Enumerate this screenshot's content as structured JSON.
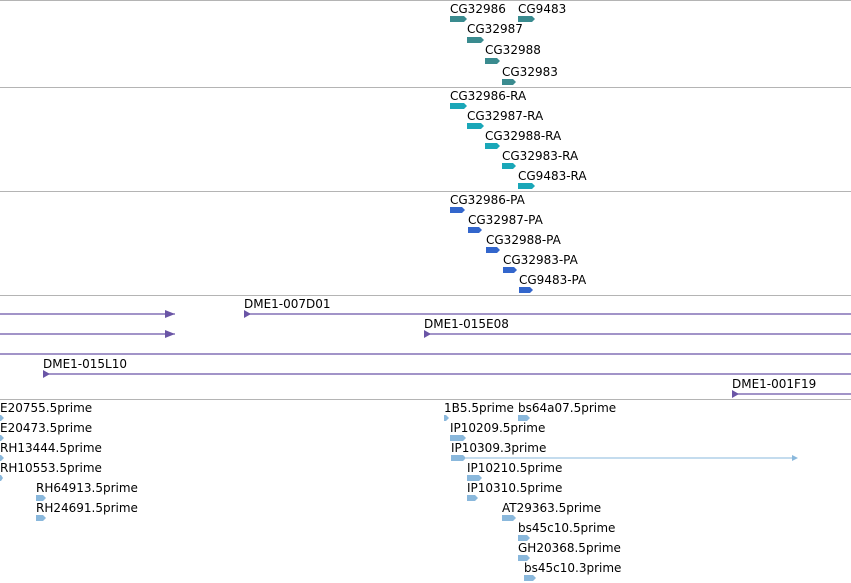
{
  "colors": {
    "gene": "#3a8b8f",
    "transcript": "#1aa7b8",
    "protein": "#3366cc",
    "clone": "#6a55a6",
    "est": "#8ab8dc",
    "divider": "#b4b4b4"
  },
  "tracks": {
    "genes": {
      "features": [
        {
          "label": "CG32986"
        },
        {
          "label": "CG9483"
        },
        {
          "label": "CG32987"
        },
        {
          "label": "CG32988"
        },
        {
          "label": "CG32983"
        }
      ]
    },
    "transcripts": {
      "features": [
        {
          "label": "CG32986-RA"
        },
        {
          "label": "CG32987-RA"
        },
        {
          "label": "CG32988-RA"
        },
        {
          "label": "CG32983-RA"
        },
        {
          "label": "CG9483-RA"
        }
      ]
    },
    "proteins": {
      "features": [
        {
          "label": "CG32986-PA"
        },
        {
          "label": "CG32987-PA"
        },
        {
          "label": "CG32988-PA"
        },
        {
          "label": "CG32983-PA"
        },
        {
          "label": "CG9483-PA"
        }
      ]
    },
    "clones": {
      "features": [
        {
          "label": ""
        },
        {
          "label": "DME1-007D01"
        },
        {
          "label": ""
        },
        {
          "label": "DME1-015E08"
        },
        {
          "label": ""
        },
        {
          "label": "DME1-015L10"
        },
        {
          "label": "DME1-001F19"
        }
      ]
    },
    "ests": {
      "features": [
        {
          "label": "E20755.5prime"
        },
        {
          "label": "E20473.5prime"
        },
        {
          "label": "RH13444.5prime"
        },
        {
          "label": "RH10553.5prime"
        },
        {
          "label": "RH64913.5prime"
        },
        {
          "label": "RH24691.5prime"
        },
        {
          "label": "1B5.5prime"
        },
        {
          "label": "bs64a07.5prime"
        },
        {
          "label": "IP10209.5prime"
        },
        {
          "label": "IP10309.3prime"
        },
        {
          "label": "IP10210.5prime"
        },
        {
          "label": "IP10310.5prime"
        },
        {
          "label": "AT29363.5prime"
        },
        {
          "label": "bs45c10.5prime"
        },
        {
          "label": "GH20368.5prime"
        },
        {
          "label": "bs45c10.3prime"
        }
      ]
    }
  }
}
